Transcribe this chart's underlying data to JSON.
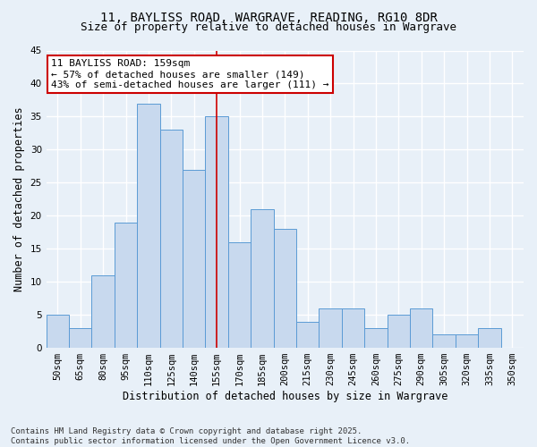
{
  "title_line1": "11, BAYLISS ROAD, WARGRAVE, READING, RG10 8DR",
  "title_line2": "Size of property relative to detached houses in Wargrave",
  "xlabel": "Distribution of detached houses by size in Wargrave",
  "ylabel": "Number of detached properties",
  "categories": [
    "50sqm",
    "65sqm",
    "80sqm",
    "95sqm",
    "110sqm",
    "125sqm",
    "140sqm",
    "155sqm",
    "170sqm",
    "185sqm",
    "200sqm",
    "215sqm",
    "230sqm",
    "245sqm",
    "260sqm",
    "275sqm",
    "290sqm",
    "305sqm",
    "320sqm",
    "335sqm",
    "350sqm"
  ],
  "values": [
    5,
    3,
    11,
    19,
    37,
    33,
    27,
    35,
    16,
    21,
    18,
    4,
    6,
    6,
    3,
    5,
    6,
    2,
    2,
    3,
    0
  ],
  "bar_color": "#c8d9ee",
  "bar_edge_color": "#5b9bd5",
  "marker_category_index": 7,
  "marker_line_color": "#cc0000",
  "annotation_line1": "11 BAYLISS ROAD: 159sqm",
  "annotation_line2": "← 57% of detached houses are smaller (149)",
  "annotation_line3": "43% of semi-detached houses are larger (111) →",
  "annotation_box_facecolor": "#ffffff",
  "annotation_box_edgecolor": "#cc0000",
  "ylim": [
    0,
    45
  ],
  "yticks": [
    0,
    5,
    10,
    15,
    20,
    25,
    30,
    35,
    40,
    45
  ],
  "background_color": "#e8f0f8",
  "grid_color": "#ffffff",
  "footer_text": "Contains HM Land Registry data © Crown copyright and database right 2025.\nContains public sector information licensed under the Open Government Licence v3.0.",
  "title_fontsize": 10,
  "subtitle_fontsize": 9,
  "axis_label_fontsize": 8.5,
  "tick_fontsize": 7.5,
  "annotation_fontsize": 8,
  "footer_fontsize": 6.5
}
